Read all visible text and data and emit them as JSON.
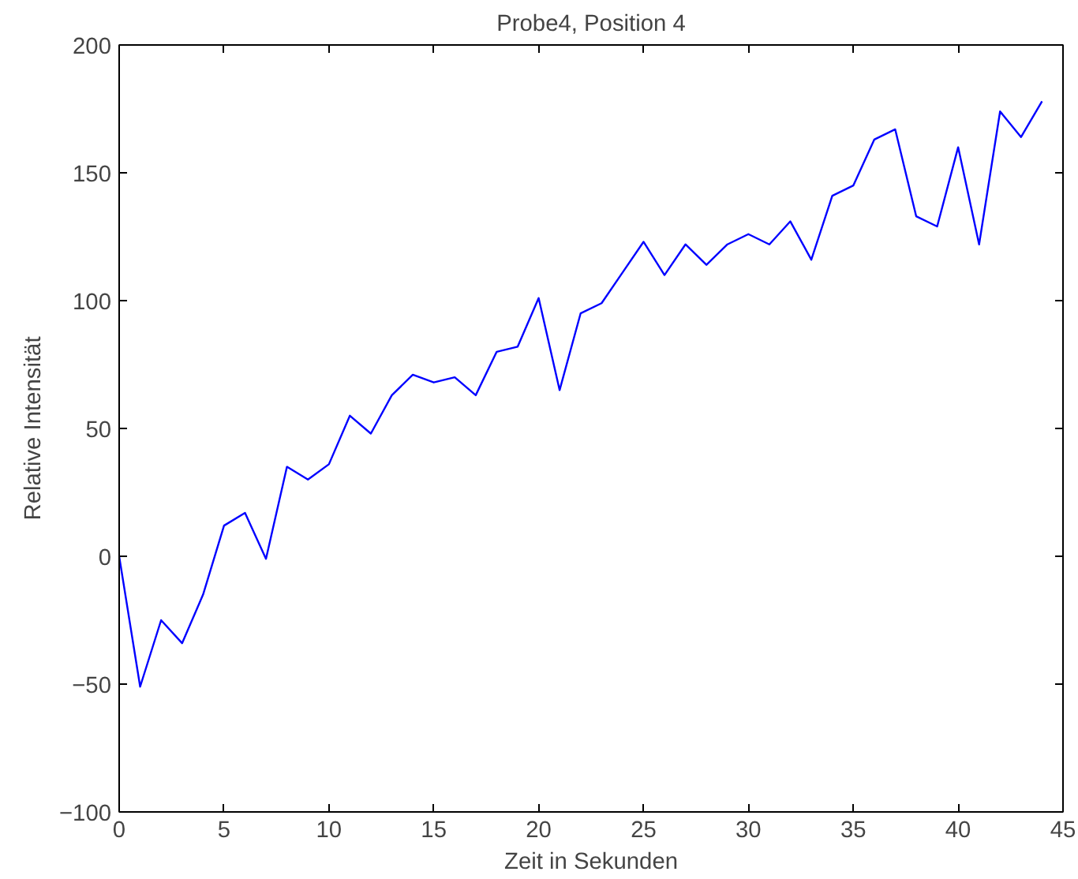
{
  "chart_data": {
    "type": "line",
    "title": "Probe4, Position 4",
    "xlabel": "Zeit in Sekunden",
    "ylabel": "Relative Intensität",
    "x": [
      0,
      1,
      2,
      3,
      4,
      5,
      6,
      7,
      8,
      9,
      10,
      11,
      12,
      13,
      14,
      15,
      16,
      17,
      18,
      19,
      20,
      21,
      22,
      23,
      24,
      25,
      26,
      27,
      28,
      29,
      30,
      31,
      32,
      33,
      34,
      35,
      36,
      37,
      38,
      39,
      40,
      41,
      42,
      43,
      44
    ],
    "series": [
      {
        "color": "#0000ff",
        "values": [
          0,
          -51,
          -25,
          -34,
          -15,
          12,
          17,
          -1,
          35,
          30,
          36,
          55,
          48,
          63,
          71,
          68,
          70,
          63,
          80,
          82,
          101,
          65,
          95,
          99,
          111,
          123,
          110,
          122,
          114,
          122,
          126,
          122,
          131,
          116,
          141,
          145,
          163,
          167,
          133,
          129,
          160,
          122,
          174,
          164,
          178
        ]
      }
    ],
    "xlim": [
      0,
      45
    ],
    "ylim": [
      -100,
      200
    ],
    "xticks": [
      0,
      5,
      10,
      15,
      20,
      25,
      30,
      35,
      40,
      45
    ],
    "yticks": [
      -100,
      -50,
      0,
      50,
      100,
      150,
      200
    ],
    "grid": false,
    "marker": "none",
    "line_style": "solid"
  }
}
